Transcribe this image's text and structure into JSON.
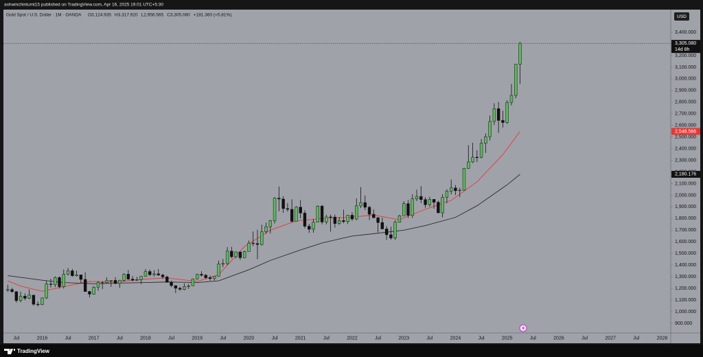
{
  "header": {
    "byline": "ashwinchintumt15 published on TradingView.com, Apr 16, 2025 19:01 UTC+5:30"
  },
  "footer": {
    "brand": "TradingView"
  },
  "chart_data": {
    "type": "candlestick",
    "symbol": "Gold Spot / U.S. Dollar · 1M · OANDA",
    "ohlc_text": [
      "O3,124.935",
      "H3,317.920",
      "L2,956.565",
      "C3,305.080",
      "+181.360 (+5.81%)"
    ],
    "currency": "USD",
    "close_label": "3,305.080",
    "countdown": "14d 8h",
    "up_color": "#5cb85c",
    "down_color": "#111111",
    "wick_color": "#111111",
    "x": [
      "2015-05",
      "2015-06",
      "2015-07",
      "2015-08",
      "2015-09",
      "2015-10",
      "2015-11",
      "2015-12",
      "2016-01",
      "2016-02",
      "2016-03",
      "2016-04",
      "2016-05",
      "2016-06",
      "2016-07",
      "2016-08",
      "2016-09",
      "2016-10",
      "2016-11",
      "2016-12",
      "2017-01",
      "2017-02",
      "2017-03",
      "2017-04",
      "2017-05",
      "2017-06",
      "2017-07",
      "2017-08",
      "2017-09",
      "2017-10",
      "2017-11",
      "2017-12",
      "2018-01",
      "2018-02",
      "2018-03",
      "2018-04",
      "2018-05",
      "2018-06",
      "2018-07",
      "2018-08",
      "2018-09",
      "2018-10",
      "2018-11",
      "2018-12",
      "2019-01",
      "2019-02",
      "2019-03",
      "2019-04",
      "2019-05",
      "2019-06",
      "2019-07",
      "2019-08",
      "2019-09",
      "2019-10",
      "2019-11",
      "2019-12",
      "2020-01",
      "2020-02",
      "2020-03",
      "2020-04",
      "2020-05",
      "2020-06",
      "2020-07",
      "2020-08",
      "2020-09",
      "2020-10",
      "2020-11",
      "2020-12",
      "2021-01",
      "2021-02",
      "2021-03",
      "2021-04",
      "2021-05",
      "2021-06",
      "2021-07",
      "2021-08",
      "2021-09",
      "2021-10",
      "2021-11",
      "2021-12",
      "2022-01",
      "2022-02",
      "2022-03",
      "2022-04",
      "2022-05",
      "2022-06",
      "2022-07",
      "2022-08",
      "2022-09",
      "2022-10",
      "2022-11",
      "2022-12",
      "2023-01",
      "2023-02",
      "2023-03",
      "2023-04",
      "2023-05",
      "2023-06",
      "2023-07",
      "2023-08",
      "2023-09",
      "2023-10",
      "2023-11",
      "2023-12",
      "2024-01",
      "2024-02",
      "2024-03",
      "2024-04",
      "2024-05",
      "2024-06",
      "2024-07",
      "2024-08",
      "2024-09",
      "2024-10",
      "2024-11",
      "2024-12",
      "2025-01",
      "2025-02",
      "2025-03",
      "2025-04"
    ],
    "open": [
      1183,
      1190,
      1172,
      1095,
      1133,
      1115,
      1142,
      1064,
      1061,
      1118,
      1238,
      1233,
      1293,
      1215,
      1322,
      1351,
      1309,
      1316,
      1277,
      1173,
      1151,
      1211,
      1249,
      1249,
      1268,
      1269,
      1242,
      1269,
      1322,
      1280,
      1271,
      1275,
      1303,
      1345,
      1318,
      1325,
      1315,
      1299,
      1253,
      1224,
      1201,
      1192,
      1215,
      1222,
      1282,
      1321,
      1313,
      1292,
      1284,
      1305,
      1409,
      1413,
      1520,
      1472,
      1513,
      1464,
      1517,
      1589,
      1585,
      1577,
      1687,
      1730,
      1781,
      1975,
      1968,
      1886,
      1879,
      1776,
      1898,
      1847,
      1734,
      1708,
      1769,
      1907,
      1770,
      1814,
      1813,
      1757,
      1783,
      1774,
      1829,
      1796,
      1909,
      1937,
      1897,
      1837,
      1807,
      1766,
      1711,
      1661,
      1633,
      1768,
      1824,
      1928,
      1827,
      1969,
      1990,
      1963,
      1919,
      1965,
      1940,
      1849,
      1983,
      2036,
      2063,
      2039,
      2044,
      2230,
      2286,
      2327,
      2326,
      2447,
      2503,
      2634,
      2744,
      2643,
      2625,
      2798,
      2858,
      3124.935
    ],
    "high": [
      1232,
      1205,
      1175,
      1170,
      1157,
      1191,
      1143,
      1088,
      1123,
      1263,
      1283,
      1304,
      1304,
      1362,
      1375,
      1367,
      1352,
      1318,
      1338,
      1180,
      1219,
      1264,
      1261,
      1295,
      1270,
      1296,
      1274,
      1331,
      1357,
      1306,
      1299,
      1307,
      1366,
      1362,
      1356,
      1366,
      1326,
      1309,
      1266,
      1225,
      1214,
      1243,
      1237,
      1284,
      1326,
      1347,
      1324,
      1310,
      1306,
      1439,
      1453,
      1555,
      1557,
      1518,
      1516,
      1524,
      1611,
      1689,
      1704,
      1747,
      1765,
      1789,
      1984,
      2075,
      1992,
      1933,
      1965,
      1906,
      1959,
      1871,
      1755,
      1797,
      1913,
      1916,
      1832,
      1834,
      1834,
      1814,
      1877,
      1832,
      1853,
      1974,
      2070,
      1998,
      1909,
      1879,
      1814,
      1808,
      1735,
      1730,
      1786,
      1833,
      1949,
      1960,
      2009,
      2048,
      2079,
      1983,
      1987,
      1966,
      1953,
      2009,
      2052,
      2135,
      2088,
      2065,
      2236,
      2431,
      2450,
      2387,
      2483,
      2531,
      2685,
      2790,
      2801,
      2726,
      2817,
      2956,
      3128,
      3317.92
    ],
    "low": [
      1170,
      1162,
      1077,
      1080,
      1098,
      1107,
      1052,
      1046,
      1056,
      1109,
      1208,
      1211,
      1200,
      1199,
      1311,
      1300,
      1302,
      1241,
      1171,
      1122,
      1146,
      1180,
      1194,
      1241,
      1214,
      1236,
      1204,
      1259,
      1272,
      1260,
      1264,
      1237,
      1302,
      1307,
      1303,
      1309,
      1282,
      1250,
      1211,
      1160,
      1180,
      1183,
      1196,
      1221,
      1276,
      1303,
      1281,
      1266,
      1267,
      1302,
      1382,
      1400,
      1459,
      1459,
      1445,
      1459,
      1517,
      1563,
      1451,
      1568,
      1670,
      1671,
      1757,
      1863,
      1849,
      1860,
      1764,
      1775,
      1802,
      1717,
      1677,
      1678,
      1766,
      1750,
      1751,
      1688,
      1722,
      1746,
      1759,
      1753,
      1780,
      1786,
      1890,
      1872,
      1787,
      1805,
      1681,
      1709,
      1615,
      1618,
      1616,
      1765,
      1824,
      1805,
      1805,
      1950,
      1932,
      1893,
      1903,
      1885,
      1847,
      1810,
      1932,
      2009,
      2002,
      1984,
      2039,
      2228,
      2277,
      2286,
      2318,
      2364,
      2471,
      2603,
      2536,
      2583,
      2614,
      2772,
      2833,
      2956.565
    ],
    "close": [
      1190,
      1172,
      1095,
      1133,
      1115,
      1142,
      1064,
      1061,
      1118,
      1238,
      1233,
      1293,
      1215,
      1322,
      1351,
      1309,
      1316,
      1277,
      1173,
      1151,
      1211,
      1249,
      1249,
      1268,
      1269,
      1242,
      1269,
      1322,
      1280,
      1271,
      1275,
      1303,
      1345,
      1318,
      1325,
      1315,
      1299,
      1253,
      1224,
      1201,
      1192,
      1215,
      1222,
      1282,
      1321,
      1313,
      1292,
      1284,
      1305,
      1409,
      1413,
      1520,
      1472,
      1513,
      1464,
      1517,
      1589,
      1585,
      1577,
      1687,
      1730,
      1781,
      1975,
      1968,
      1886,
      1879,
      1776,
      1898,
      1847,
      1734,
      1708,
      1769,
      1907,
      1770,
      1814,
      1813,
      1757,
      1783,
      1774,
      1829,
      1796,
      1909,
      1937,
      1897,
      1837,
      1807,
      1766,
      1711,
      1661,
      1633,
      1768,
      1824,
      1928,
      1827,
      1969,
      1990,
      1963,
      1919,
      1965,
      1940,
      1849,
      1983,
      2036,
      2063,
      2039,
      2044,
      2230,
      2286,
      2327,
      2326,
      2447,
      2503,
      2634,
      2744,
      2643,
      2625,
      2798,
      2858,
      3124.935,
      3305.08
    ],
    "moving_averages": [
      {
        "color": "#e53935",
        "label_color": "#e53935",
        "x": [
          "2015-05",
          "2015-08",
          "2016-01",
          "2016-06",
          "2016-12",
          "2017-06",
          "2018-01",
          "2018-06",
          "2019-01",
          "2019-06",
          "2019-12",
          "2020-06",
          "2020-12",
          "2021-06",
          "2021-12",
          "2022-06",
          "2022-12",
          "2023-06",
          "2023-12",
          "2024-06",
          "2024-12",
          "2025-04"
        ],
        "values": [
          1265,
          1220,
          1175,
          1215,
          1260,
          1255,
          1280,
          1290,
          1260,
          1318,
          1560,
          1700,
          1780,
          1800,
          1810,
          1830,
          1790,
          1880,
          1956,
          2115,
          2350,
          2548.566
        ],
        "last_label": "2,548.566"
      },
      {
        "color": "#2b2b2b",
        "label_color": "#111111",
        "x": [
          "2015-05",
          "2016-01",
          "2016-06",
          "2017-01",
          "2017-06",
          "2018-01",
          "2018-06",
          "2019-01",
          "2019-06",
          "2020-01",
          "2020-06",
          "2021-01",
          "2021-06",
          "2022-01",
          "2022-06",
          "2023-01",
          "2023-06",
          "2024-01",
          "2024-06",
          "2025-01",
          "2025-04"
        ],
        "values": [
          1310,
          1270,
          1250,
          1240,
          1245,
          1250,
          1255,
          1250,
          1265,
          1360,
          1440,
          1530,
          1590,
          1650,
          1670,
          1700,
          1740,
          1810,
          1910,
          2090,
          2180.176
        ],
        "last_label": "2,180.176"
      }
    ],
    "xlim": [
      "2015-04",
      "2028-03"
    ],
    "ylim": [
      817,
      3595
    ],
    "yticks": [
      {
        "value": 3400,
        "label": "3,400.000"
      },
      {
        "value": 3300,
        "label": "3,300.000"
      },
      {
        "value": 3200,
        "label": "3,200.000"
      },
      {
        "value": 3100,
        "label": "3,100.000"
      },
      {
        "value": 3000,
        "label": "3,000.000"
      },
      {
        "value": 2900,
        "label": "2,900.000"
      },
      {
        "value": 2800,
        "label": "2,800.000"
      },
      {
        "value": 2700,
        "label": "2,700.000"
      },
      {
        "value": 2600,
        "label": "2,600.000"
      },
      {
        "value": 2500,
        "label": "2,500.000"
      },
      {
        "value": 2400,
        "label": "2,400.000"
      },
      {
        "value": 2300,
        "label": "2,300.000"
      },
      {
        "value": 2200,
        "label": "2,200.000"
      },
      {
        "value": 2100,
        "label": "2,100.000"
      },
      {
        "value": 2000,
        "label": "2,000.000"
      },
      {
        "value": 1900,
        "label": "1,900.000"
      },
      {
        "value": 1800,
        "label": "1,800.000"
      },
      {
        "value": 1700,
        "label": "1,700.000"
      },
      {
        "value": 1600,
        "label": "1,600.000"
      },
      {
        "value": 1500,
        "label": "1,500.000"
      },
      {
        "value": 1400,
        "label": "1,400.000"
      },
      {
        "value": 1300,
        "label": "1,300.000"
      },
      {
        "value": 1200,
        "label": "1,200.000"
      },
      {
        "value": 1100,
        "label": "1,100.000"
      },
      {
        "value": 1000,
        "label": "1,000.000"
      },
      {
        "value": 900,
        "label": "900.000"
      }
    ],
    "xticks": [
      {
        "value": "2015-07",
        "label": "Jul"
      },
      {
        "value": "2016-01",
        "label": "2016"
      },
      {
        "value": "2016-07",
        "label": "Jul"
      },
      {
        "value": "2017-01",
        "label": "2017"
      },
      {
        "value": "2017-07",
        "label": "Jul"
      },
      {
        "value": "2018-01",
        "label": "2018"
      },
      {
        "value": "2018-07",
        "label": "Jul"
      },
      {
        "value": "2019-01",
        "label": "2019"
      },
      {
        "value": "2019-07",
        "label": "Jul"
      },
      {
        "value": "2020-01",
        "label": "2020"
      },
      {
        "value": "2020-07",
        "label": "Jul"
      },
      {
        "value": "2021-01",
        "label": "2021"
      },
      {
        "value": "2021-07",
        "label": "Jul"
      },
      {
        "value": "2022-01",
        "label": "2022"
      },
      {
        "value": "2022-07",
        "label": "Jul"
      },
      {
        "value": "2023-01",
        "label": "2023"
      },
      {
        "value": "2023-07",
        "label": "Jul"
      },
      {
        "value": "2024-01",
        "label": "2024"
      },
      {
        "value": "2024-07",
        "label": "Jul"
      },
      {
        "value": "2025-01",
        "label": "2025"
      },
      {
        "value": "2025-07",
        "label": "Jul"
      },
      {
        "value": "2026-01",
        "label": "2026"
      },
      {
        "value": "2026-07",
        "label": "Jul"
      },
      {
        "value": "2027-01",
        "label": "2027"
      },
      {
        "value": "2027-07",
        "label": "Jul"
      },
      {
        "value": "2028-01",
        "label": "2028"
      }
    ],
    "grid": false
  }
}
